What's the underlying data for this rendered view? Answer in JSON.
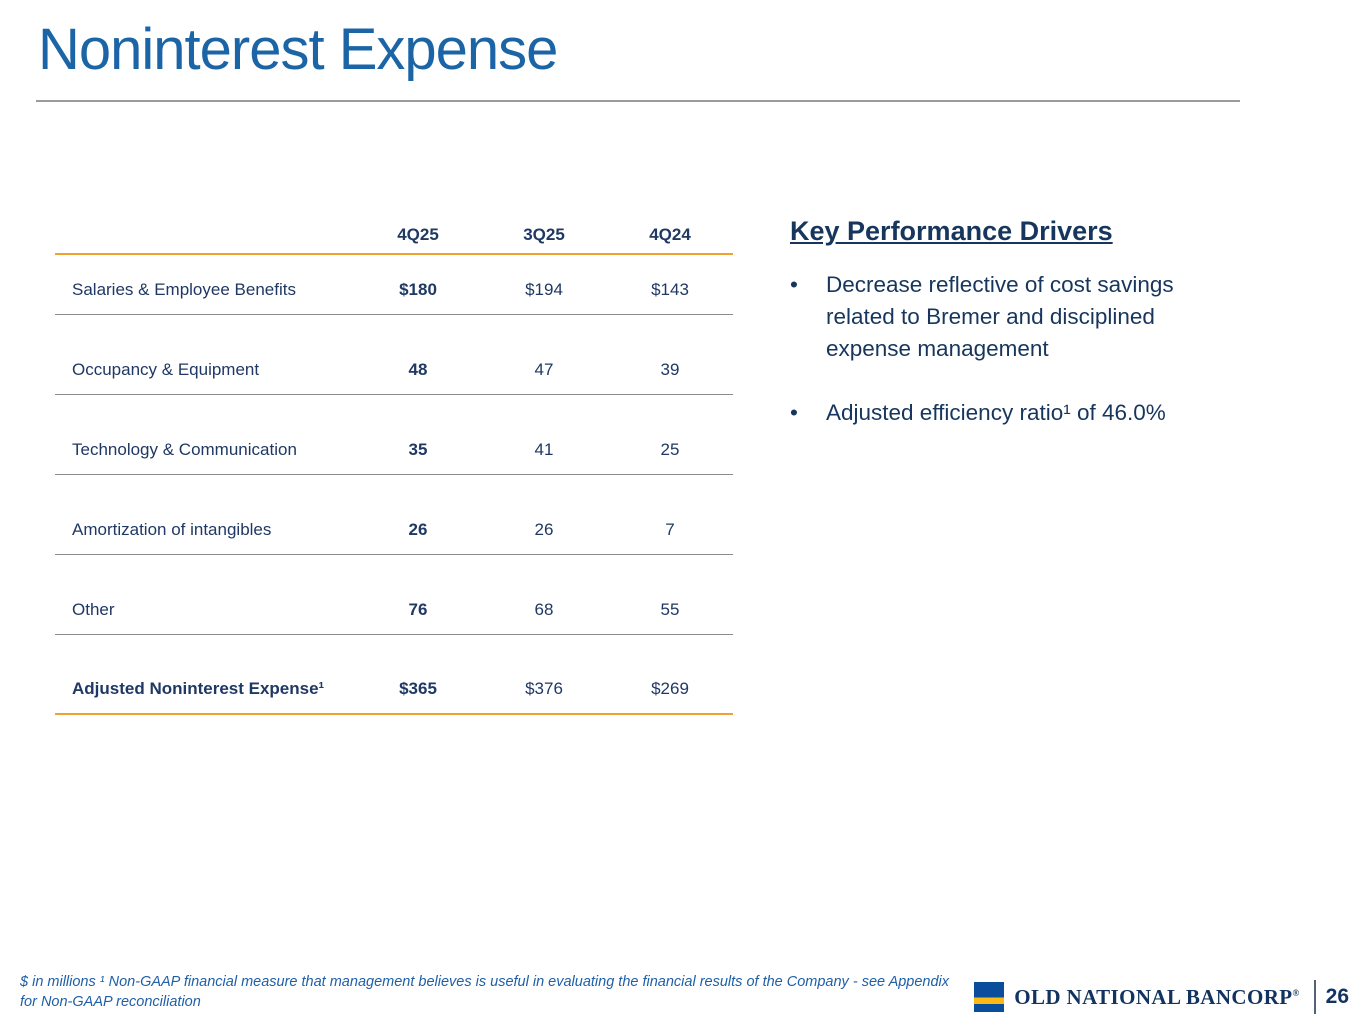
{
  "slide": {
    "title": "Noninterest Expense",
    "page_number": "26"
  },
  "table": {
    "columns": [
      "4Q25",
      "3Q25",
      "4Q24"
    ],
    "rows": [
      {
        "label": "Salaries & Employee Benefits",
        "values": [
          "$180",
          "$194",
          "$143"
        ]
      },
      {
        "label": "Occupancy & Equipment",
        "values": [
          "48",
          "47",
          "39"
        ]
      },
      {
        "label": "Technology & Communication",
        "values": [
          "35",
          "41",
          "25"
        ]
      },
      {
        "label": "Amortization of intangibles",
        "values": [
          "26",
          "26",
          "7"
        ]
      },
      {
        "label": "Other",
        "values": [
          "76",
          "68",
          "55"
        ]
      },
      {
        "label": "Adjusted Noninterest Expense¹",
        "values": [
          "$365",
          "$376",
          "$269"
        ]
      }
    ]
  },
  "key_drivers": {
    "heading": "Key Performance Drivers",
    "bullet_marker": "•",
    "bullets": [
      "Decrease reflective of cost savings\nrelated to Bremer and disciplined\nexpense management",
      "Adjusted efficiency ratio¹ of 46.0%"
    ]
  },
  "footnote": "$ in millions  ¹ Non-GAAP financial measure that management believes is useful in evaluating the financial results of the Company - see Appendix\nfor Non-GAAP reconciliation",
  "logo": {
    "brand": "OLD NATIONAL BANCORP",
    "registered": "®"
  },
  "colors": {
    "title_blue": "#1B65A6",
    "table_navy": "#1F3864",
    "heading_navy": "#17365D",
    "gold_rule": "#F0A22E",
    "gray_rule": "#8c8c8c",
    "footnote_blue": "#1F5FA8",
    "logo_blue": "#0A4E9B",
    "logo_gold": "#FDB913",
    "logo_text_navy": "#12335F"
  }
}
